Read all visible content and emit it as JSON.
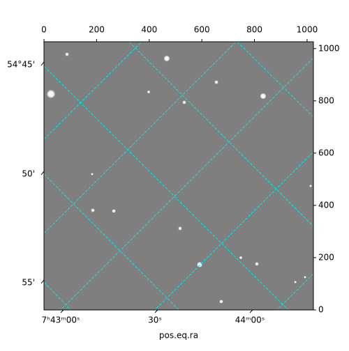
{
  "chart_data": {
    "type": "image",
    "xlabel": "pos.eq.ra",
    "xlim": [
      0,
      1024
    ],
    "xticks": [
      0,
      200,
      400,
      600,
      800,
      1000
    ],
    "ylim": [
      0,
      1026
    ],
    "yticks": [
      0,
      200,
      400,
      600,
      800,
      1000
    ],
    "dec_tick_labels": [
      "54°45'",
      "50'",
      "55'"
    ],
    "ra_tick_labels": [
      "7ʰ43ᵐ00ˢ",
      "30ˢ",
      "44ᵐ00ˢ"
    ],
    "grid_color": "#00e5e5"
  }
}
